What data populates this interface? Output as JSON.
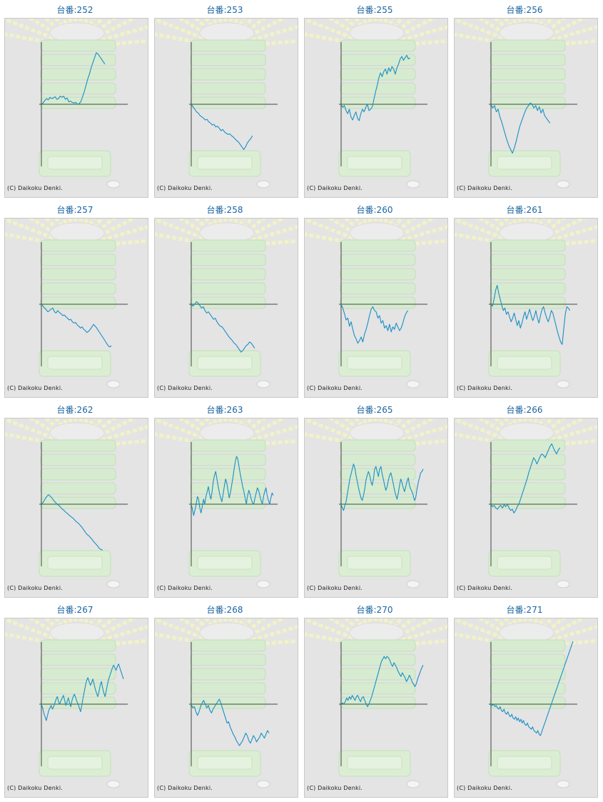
{
  "copyright": "(C) Daikoku Denki.",
  "title_prefix": "台番:",
  "colors": {
    "line": "#1a8fc4",
    "axis": "#444444",
    "title": "#1a64a0",
    "panel_bg": "#e4e4e4"
  },
  "chart_data": [
    {
      "type": "line",
      "title": "台番:252",
      "series": [
        {
          "values": [
            0,
            2,
            6,
            9,
            7,
            11,
            9,
            10,
            12,
            8,
            9,
            13,
            11,
            13,
            8,
            10,
            4,
            5,
            3,
            2,
            3,
            0,
            1,
            4,
            12,
            20,
            30,
            40,
            48,
            58,
            66,
            74,
            82,
            80,
            76,
            72,
            68,
            64
          ]
        }
      ]
    },
    {
      "type": "line",
      "title": "台番:253",
      "series": [
        {
          "values": [
            0,
            -4,
            -8,
            -12,
            -14,
            -18,
            -20,
            -22,
            -25,
            -24,
            -28,
            -30,
            -33,
            -32,
            -36,
            -35,
            -38,
            -42,
            -40,
            -44,
            -46,
            -48,
            -47,
            -50,
            -52,
            -55,
            -58,
            -60,
            -64,
            -68,
            -72,
            -68,
            -62,
            -58,
            -55,
            -50
          ]
        }
      ]
    },
    {
      "type": "line",
      "title": "台番:255",
      "series": [
        {
          "values": [
            0,
            -5,
            -2,
            -10,
            -15,
            -8,
            -20,
            -25,
            -18,
            -12,
            -22,
            -26,
            -15,
            -8,
            -12,
            -5,
            0,
            -10,
            -8,
            -4,
            8,
            20,
            30,
            42,
            50,
            44,
            52,
            56,
            48,
            58,
            52,
            60,
            56,
            48,
            58,
            64,
            72,
            76,
            70,
            74,
            78,
            72,
            74
          ]
        }
      ]
    },
    {
      "type": "line",
      "title": "台番:256",
      "series": [
        {
          "values": [
            0,
            -6,
            -2,
            -12,
            -8,
            -20,
            -28,
            -38,
            -48,
            -58,
            -66,
            -72,
            -78,
            -70,
            -60,
            -48,
            -36,
            -28,
            -20,
            -12,
            -6,
            -2,
            2,
            0,
            -6,
            -2,
            -10,
            -4,
            -14,
            -8,
            -18,
            -22,
            -26,
            -30
          ]
        }
      ]
    },
    {
      "type": "line",
      "title": "台番:257",
      "series": [
        {
          "values": [
            0,
            -3,
            -6,
            -9,
            -12,
            -10,
            -8,
            -6,
            -12,
            -14,
            -10,
            -13,
            -15,
            -18,
            -17,
            -20,
            -22,
            -25,
            -24,
            -28,
            -30,
            -29,
            -33,
            -35,
            -38,
            -36,
            -40,
            -42,
            -45,
            -43,
            -40,
            -36,
            -32,
            -35,
            -38,
            -42,
            -46,
            -50,
            -54,
            -58,
            -62,
            -66,
            -68,
            -66
          ]
        }
      ]
    },
    {
      "type": "line",
      "title": "台番:258",
      "series": [
        {
          "values": [
            0,
            -3,
            0,
            4,
            2,
            -2,
            -6,
            -4,
            -10,
            -14,
            -12,
            -16,
            -20,
            -24,
            -22,
            -28,
            -32,
            -35,
            -36,
            -40,
            -44,
            -48,
            -52,
            -55,
            -58,
            -62,
            -64,
            -68,
            -72,
            -76,
            -74,
            -70,
            -66,
            -64,
            -60,
            -62,
            -66,
            -70
          ]
        }
      ]
    },
    {
      "type": "line",
      "title": "台番:260",
      "series": [
        {
          "values": [
            0,
            -6,
            -15,
            -25,
            -22,
            -35,
            -28,
            -40,
            -50,
            -55,
            -62,
            -58,
            -52,
            -60,
            -48,
            -40,
            -30,
            -18,
            -8,
            -4,
            -10,
            -12,
            -22,
            -18,
            -30,
            -26,
            -38,
            -34,
            -42,
            -32,
            -44,
            -36,
            -40,
            -30,
            -36,
            -42,
            -38,
            -30,
            -20,
            -14,
            -10
          ]
        }
      ]
    },
    {
      "type": "line",
      "title": "台番:261",
      "series": [
        {
          "values": [
            0,
            -3,
            8,
            22,
            30,
            18,
            8,
            -2,
            -10,
            -6,
            -16,
            -12,
            -20,
            -28,
            -22,
            -14,
            -24,
            -34,
            -26,
            -38,
            -30,
            -20,
            -12,
            -24,
            -16,
            -8,
            -18,
            -26,
            -20,
            -10,
            -22,
            -30,
            -18,
            -8,
            -4,
            -14,
            -22,
            -28,
            -20,
            -10,
            -14,
            -24,
            -34,
            -44,
            -52,
            -60,
            -64,
            -40,
            -16,
            -4,
            -6,
            -10
          ]
        }
      ]
    },
    {
      "type": "line",
      "title": "台番:262",
      "series": [
        {
          "values": [
            0,
            3,
            8,
            12,
            15,
            13,
            10,
            6,
            3,
            0,
            -2,
            -5,
            -8,
            -10,
            -13,
            -15,
            -18,
            -20,
            -22,
            -25,
            -28,
            -30,
            -33,
            -36,
            -40,
            -44,
            -48,
            -50,
            -53,
            -56,
            -60,
            -63,
            -66,
            -70,
            -72,
            -73
          ]
        }
      ]
    },
    {
      "type": "line",
      "title": "台番:263",
      "series": [
        {
          "values": [
            0,
            -8,
            -18,
            -10,
            0,
            12,
            8,
            -6,
            -14,
            -4,
            8,
            0,
            12,
            20,
            28,
            16,
            8,
            20,
            36,
            46,
            52,
            40,
            28,
            18,
            10,
            4,
            16,
            28,
            40,
            34,
            22,
            10,
            18,
            30,
            42,
            56,
            68,
            76,
            72,
            60,
            48,
            38,
            28,
            20,
            10,
            0,
            14,
            22,
            16,
            8,
            2,
            0,
            10,
            18,
            26,
            22,
            14,
            6,
            0,
            12,
            20,
            26,
            14,
            6,
            0,
            10,
            18,
            14
          ]
        }
      ]
    },
    {
      "type": "line",
      "title": "台番:265",
      "series": [
        {
          "values": [
            0,
            -6,
            -10,
            -2,
            4,
            16,
            28,
            40,
            48,
            56,
            64,
            58,
            46,
            36,
            26,
            18,
            10,
            6,
            14,
            24,
            38,
            46,
            52,
            46,
            36,
            30,
            40,
            56,
            60,
            52,
            44,
            56,
            60,
            48,
            40,
            30,
            22,
            28,
            38,
            46,
            50,
            42,
            32,
            22,
            14,
            8,
            18,
            30,
            40,
            34,
            26,
            20,
            28,
            36,
            42,
            30,
            24,
            20,
            14,
            6,
            10,
            24,
            34,
            42,
            50,
            52,
            56
          ]
        }
      ]
    },
    {
      "type": "line",
      "title": "台番:266",
      "series": [
        {
          "values": [
            0,
            -4,
            -2,
            -6,
            -8,
            -4,
            -2,
            -6,
            -1,
            -4,
            0,
            -6,
            -10,
            -8,
            -14,
            -10,
            -4,
            0,
            8,
            16,
            24,
            32,
            40,
            50,
            58,
            66,
            74,
            70,
            64,
            70,
            76,
            80,
            78,
            74,
            80,
            86,
            92,
            96,
            90,
            84,
            80,
            86,
            90
          ]
        }
      ]
    },
    {
      "type": "line",
      "title": "台番:267",
      "series": [
        {
          "values": [
            0,
            -6,
            -14,
            -20,
            -26,
            -18,
            -10,
            -6,
            -2,
            -8,
            -4,
            2,
            8,
            12,
            4,
            0,
            6,
            10,
            14,
            6,
            -2,
            4,
            10,
            2,
            -4,
            6,
            12,
            16,
            10,
            4,
            0,
            -6,
            -12,
            -2,
            10,
            20,
            30,
            38,
            42,
            36,
            30,
            34,
            40,
            32,
            24,
            18,
            12,
            20,
            30,
            36,
            26,
            18,
            12,
            22,
            32,
            40,
            46,
            52,
            58,
            62,
            58,
            54,
            60,
            64,
            58,
            52,
            46,
            40
          ]
        }
      ]
    },
    {
      "type": "line",
      "title": "台番:268",
      "series": [
        {
          "values": [
            0,
            -6,
            -4,
            -12,
            -18,
            -12,
            -4,
            2,
            6,
            0,
            -6,
            -2,
            -10,
            -14,
            -8,
            -4,
            0,
            4,
            8,
            2,
            -6,
            -14,
            -22,
            -30,
            -28,
            -36,
            -42,
            -48,
            -52,
            -58,
            -62,
            -66,
            -62,
            -58,
            -52,
            -46,
            -50,
            -58,
            -62,
            -56,
            -50,
            -54,
            -60,
            -56,
            -52,
            -46,
            -50,
            -54,
            -48,
            -42,
            -46
          ]
        }
      ]
    },
    {
      "type": "line",
      "title": "台番:270",
      "series": [
        {
          "values": [
            0,
            2,
            0,
            4,
            10,
            6,
            12,
            8,
            14,
            10,
            6,
            12,
            14,
            8,
            4,
            10,
            12,
            6,
            0,
            -4,
            0,
            6,
            12,
            20,
            28,
            36,
            44,
            52,
            60,
            68,
            72,
            76,
            72,
            76,
            74,
            70,
            64,
            60,
            66,
            62,
            58,
            52,
            48,
            44,
            50,
            46,
            42,
            36,
            40,
            46,
            42,
            36,
            32,
            28,
            32,
            40,
            46,
            52,
            58,
            62
          ]
        }
      ]
    },
    {
      "type": "line",
      "title": "台番:271",
      "series": [
        {
          "values": [
            0,
            -2,
            0,
            -4,
            -2,
            -6,
            -8,
            -4,
            -10,
            -12,
            -8,
            -14,
            -16,
            -12,
            -18,
            -20,
            -16,
            -22,
            -24,
            -20,
            -26,
            -22,
            -28,
            -24,
            -30,
            -26,
            -32,
            -34,
            -30,
            -36,
            -38,
            -40,
            -36,
            -42,
            -44,
            -46,
            -42,
            -48,
            -50,
            -44,
            -38,
            -32,
            -26,
            -20,
            -14,
            -8,
            -2,
            4,
            10,
            16,
            22,
            28,
            34,
            40,
            46,
            52,
            58,
            64,
            70,
            76,
            82,
            88,
            94,
            100
          ]
        }
      ]
    }
  ]
}
